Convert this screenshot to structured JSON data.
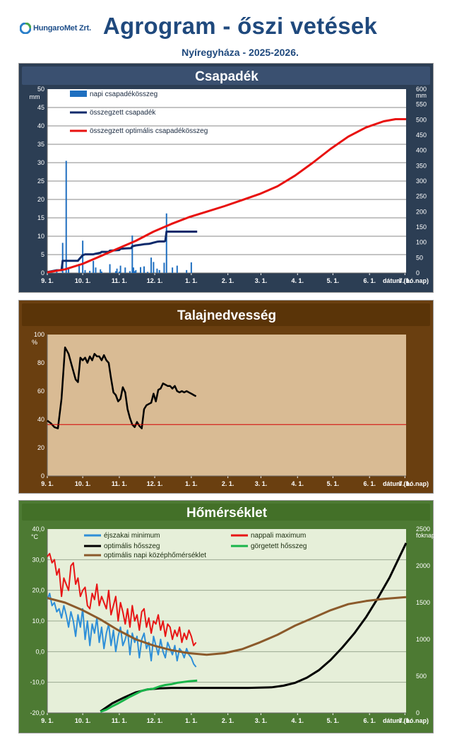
{
  "header": {
    "logo_text": "HungaroMet Zrt.",
    "title": "Agrogram - őszi vetések",
    "subtitle": "Nyíregyháza  - 2025-2026."
  },
  "x_ticks": [
    "9. 1.",
    "10. 1.",
    "11. 1.",
    "12. 1.",
    "1. 1.",
    "2. 1.",
    "3. 1.",
    "4. 1.",
    "5. 1.",
    "6. 1.",
    "7. 1."
  ],
  "x_label": "dátum (hó.nap)",
  "colors": {
    "panel1_bg": "#2c3e54",
    "panel2_bg": "#6a3f10",
    "panel3_bg": "#4d7a33",
    "title_text": "#1f497d"
  },
  "chart_data": [
    {
      "type": "bar",
      "title": "Csapadék",
      "ylabel": "mm",
      "ylabel_right": "mm",
      "ylim": [
        0,
        50
      ],
      "ylim_right": [
        0,
        600
      ],
      "x_unit": "days since 9. 1.",
      "xlim": [
        0,
        304
      ],
      "grid": true,
      "legend": "top-left",
      "y_ticks": [
        "0",
        "5",
        "10",
        "15",
        "20",
        "25",
        "30",
        "35",
        "40",
        "45",
        "50"
      ],
      "y_ticks_right": [
        "0",
        "50",
        "100",
        "150",
        "200",
        "250",
        "300",
        "350",
        "400",
        "450",
        "500",
        "550",
        "600"
      ],
      "series": [
        {
          "name": "napi csapadékösszeg",
          "type": "bar",
          "color": "#1f6fc0",
          "x": [
            8,
            13,
            16,
            18,
            27,
            30,
            32,
            36,
            39,
            41,
            45,
            46,
            53,
            58,
            59,
            61,
            62,
            66,
            70,
            72,
            73,
            74,
            75,
            79,
            82,
            85,
            88,
            90,
            93,
            95,
            99,
            101,
            106,
            110,
            118,
            122
          ],
          "y": [
            0.5,
            8.2,
            30.5,
            1.2,
            2.5,
            8.8,
            0.8,
            0.6,
            3.3,
            1.5,
            1.0,
            0.4,
            2.4,
            0.5,
            1.2,
            0.4,
            2.0,
            1.5,
            0.5,
            10.2,
            1.5,
            0.5,
            0.8,
            1.6,
            1.8,
            0.3,
            4.2,
            3.0,
            1.2,
            0.8,
            2.8,
            16.2,
            1.5,
            2.0,
            0.8,
            2.9
          ]
        },
        {
          "name": "összegzett csapadék",
          "type": "line",
          "axis": "right",
          "color": "#0d2a6b",
          "x": [
            0,
            8,
            12,
            13,
            16,
            18,
            26,
            27,
            30,
            32,
            38,
            39,
            41,
            45,
            46,
            52,
            53,
            58,
            61,
            62,
            66,
            71,
            72,
            75,
            79,
            82,
            86,
            88,
            90,
            93,
            95,
            99,
            100,
            101,
            106,
            110,
            118,
            122,
            127
          ],
          "y": [
            3,
            9,
            9,
            40,
            40,
            40,
            40,
            45,
            58,
            61,
            61,
            61,
            63,
            66,
            69,
            69,
            73,
            74,
            75,
            79,
            80,
            81,
            87,
            90,
            92,
            94,
            95,
            97,
            99,
            102,
            103,
            103,
            105,
            135,
            135,
            135,
            135,
            135,
            135
          ]
        },
        {
          "name": "összegzett optimális csapadékösszeg",
          "type": "line",
          "axis": "right",
          "color": "#e8110f",
          "x": [
            0,
            15,
            30,
            45,
            60,
            75,
            90,
            105,
            120,
            135,
            150,
            165,
            180,
            195,
            210,
            225,
            240,
            255,
            270,
            285,
            295,
            304
          ],
          "y": [
            2,
            12,
            30,
            55,
            80,
            105,
            135,
            160,
            182,
            200,
            218,
            238,
            258,
            283,
            318,
            360,
            405,
            445,
            475,
            495,
            502,
            502
          ]
        }
      ]
    },
    {
      "type": "line",
      "title": "Talajnedvesség",
      "ylabel": "%",
      "ylim": [
        0,
        110
      ],
      "x_unit": "days since 9. 1.",
      "xlim": [
        0,
        304
      ],
      "y_ticks": [
        "0",
        "20",
        "40",
        "60",
        "80",
        "100"
      ],
      "grid": false,
      "series": [
        {
          "name": "",
          "color": "#000000",
          "x": [
            0,
            3,
            6,
            9,
            12,
            15,
            18,
            21,
            24,
            26,
            28,
            30,
            32,
            34,
            36,
            38,
            40,
            42,
            44,
            46,
            48,
            50,
            52,
            54,
            56,
            58,
            60,
            62,
            64,
            66,
            68,
            70,
            72,
            74,
            76,
            78,
            80,
            82,
            84,
            86,
            88,
            90,
            92,
            94,
            96,
            98,
            100,
            102,
            104,
            106,
            108,
            110,
            112,
            114,
            116,
            118,
            120,
            122,
            124,
            126
          ],
          "y": [
            43,
            41,
            38,
            37,
            60,
            100,
            95,
            85,
            75,
            73,
            92,
            90,
            92,
            88,
            93,
            90,
            95,
            93,
            93,
            90,
            94,
            90,
            88,
            76,
            65,
            63,
            58,
            60,
            69,
            65,
            52,
            45,
            40,
            38,
            42,
            39,
            37,
            52,
            55,
            56,
            57,
            64,
            58,
            67,
            68,
            72,
            71,
            70,
            70,
            68,
            70,
            66,
            65,
            66,
            65,
            66,
            65,
            64,
            63,
            62
          ]
        },
        {
          "name": "",
          "type": "threshold",
          "color": "#d40000",
          "x": [
            0,
            304
          ],
          "y": [
            40,
            40
          ]
        }
      ]
    },
    {
      "type": "line",
      "title": "Hőmérséklet",
      "ylabel": "°C",
      "ylabel_right": "foknap",
      "ylim": [
        -20,
        40
      ],
      "ylim_right": [
        0,
        2500
      ],
      "x_unit": "days since 9. 1.",
      "xlim": [
        0,
        304
      ],
      "y_ticks": [
        "-20,0",
        "-10,0",
        "0,0",
        "10,0",
        "20,0",
        "30,0",
        "40,0"
      ],
      "y_ticks_right": [
        "0",
        "500",
        "1000",
        "1500",
        "2000",
        "2500"
      ],
      "grid": true,
      "legend": "top",
      "series": [
        {
          "name": "éjszakai minimum",
          "color": "#2e8fd8",
          "x": [
            0,
            2,
            4,
            6,
            8,
            10,
            12,
            14,
            16,
            18,
            20,
            22,
            24,
            26,
            28,
            30,
            32,
            34,
            36,
            38,
            40,
            42,
            44,
            46,
            48,
            50,
            52,
            54,
            56,
            58,
            60,
            62,
            64,
            66,
            68,
            70,
            72,
            74,
            76,
            78,
            80,
            82,
            84,
            86,
            88,
            90,
            92,
            94,
            96,
            98,
            100,
            102,
            104,
            106,
            108,
            110,
            112,
            114,
            116,
            118,
            120,
            122,
            124,
            126
          ],
          "y": [
            17,
            19,
            15,
            16,
            13,
            14,
            11,
            15,
            12,
            8,
            13,
            10,
            5,
            12,
            8,
            14,
            4,
            10,
            2,
            9,
            6,
            11,
            3,
            8,
            1,
            6,
            9,
            2,
            7,
            0,
            5,
            8,
            2,
            4,
            7,
            -1,
            6,
            3,
            5,
            -2,
            4,
            6,
            1,
            3,
            -3,
            5,
            2,
            -1,
            4,
            0,
            -2,
            3,
            1,
            -1,
            2,
            -3,
            1,
            0,
            -2,
            1,
            -1,
            -2,
            -4,
            -5
          ]
        },
        {
          "name": "nappali maximum",
          "color": "#e81515",
          "x": [
            0,
            2,
            4,
            6,
            8,
            10,
            12,
            14,
            16,
            18,
            20,
            22,
            24,
            26,
            28,
            30,
            32,
            34,
            36,
            38,
            40,
            42,
            44,
            46,
            48,
            50,
            52,
            54,
            56,
            58,
            60,
            62,
            64,
            66,
            68,
            70,
            72,
            74,
            76,
            78,
            80,
            82,
            84,
            86,
            88,
            90,
            92,
            94,
            96,
            98,
            100,
            102,
            104,
            106,
            108,
            110,
            112,
            114,
            116,
            118,
            120,
            122,
            124,
            126
          ],
          "y": [
            31,
            32,
            29,
            30,
            25,
            27,
            18,
            24,
            22,
            20,
            28,
            29,
            22,
            24,
            18,
            20,
            21,
            15,
            14,
            19,
            17,
            22,
            15,
            18,
            16,
            14,
            20,
            12,
            15,
            18,
            10,
            16,
            13,
            9,
            14,
            8,
            15,
            10,
            12,
            7,
            13,
            14,
            8,
            11,
            6,
            10,
            9,
            12,
            7,
            10,
            5,
            9,
            8,
            4,
            7,
            5,
            8,
            3,
            6,
            4,
            7,
            5,
            2,
            3
          ]
        },
        {
          "name": "optimális hősszeg",
          "axis": "right",
          "color": "#000000",
          "x": [
            45,
            55,
            65,
            75,
            85,
            95,
            105,
            115,
            130,
            150,
            170,
            190,
            200,
            210,
            220,
            230,
            240,
            250,
            260,
            270,
            280,
            290,
            304
          ],
          "y": [
            20,
            130,
            210,
            280,
            320,
            335,
            340,
            340,
            340,
            340,
            340,
            348,
            370,
            410,
            480,
            580,
            720,
            890,
            1080,
            1300,
            1560,
            1840,
            2310
          ]
        },
        {
          "name": "görgetett hősszeg",
          "axis": "right",
          "color": "#19b54a",
          "x": [
            45,
            50,
            55,
            60,
            65,
            70,
            75,
            80,
            85,
            90,
            95,
            100,
            105,
            110,
            115,
            120,
            127
          ],
          "y": [
            15,
            45,
            90,
            130,
            175,
            220,
            260,
            300,
            320,
            330,
            360,
            380,
            390,
            410,
            420,
            430,
            440
          ]
        },
        {
          "name": "optimális napi középhőmérséklet",
          "color": "#8b5a2b",
          "x": [
            0,
            15,
            30,
            45,
            60,
            75,
            90,
            105,
            120,
            135,
            150,
            165,
            180,
            195,
            210,
            225,
            240,
            255,
            270,
            285,
            304
          ],
          "y": [
            17.5,
            16,
            13.5,
            10.5,
            7,
            4,
            2,
            0.5,
            -0.5,
            -1,
            -0.5,
            0.8,
            3,
            5.5,
            8.5,
            11,
            13.5,
            15.5,
            16.5,
            17.2,
            17.8
          ]
        }
      ]
    }
  ]
}
